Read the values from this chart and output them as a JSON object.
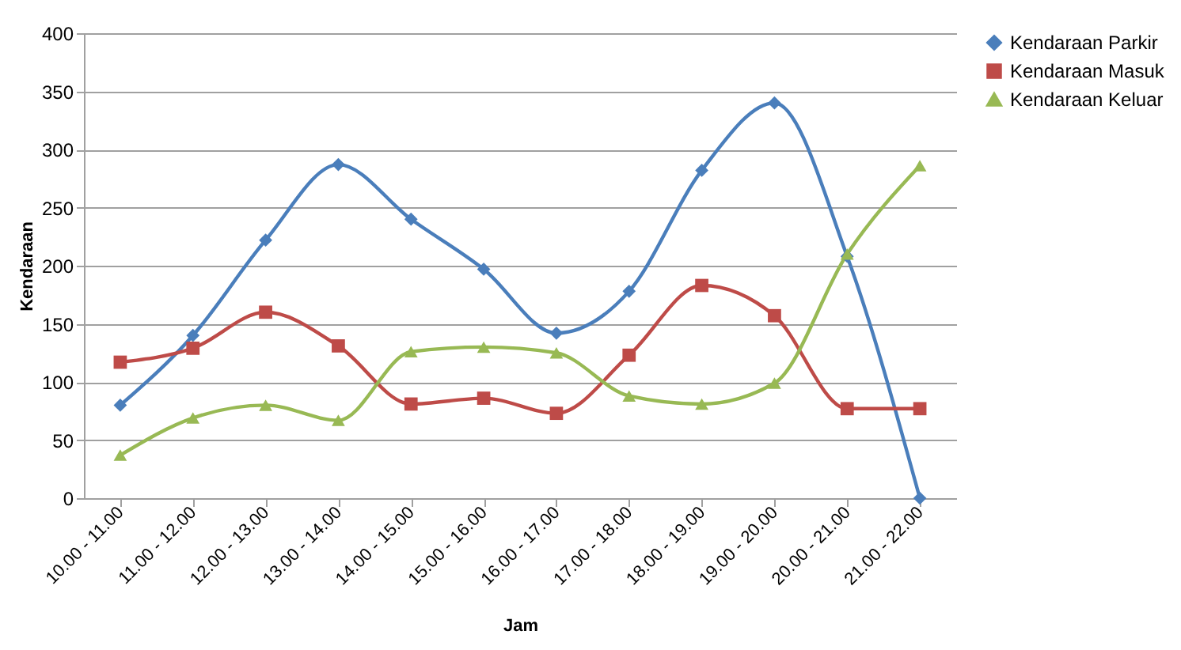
{
  "chart_data": {
    "type": "line",
    "xlabel": "Jam",
    "ylabel": "Kendaraan",
    "categories": [
      "10.00 - 11.00",
      "11.00 - 12.00",
      "12.00 - 13.00",
      "13.00 - 14.00",
      "14.00 - 15.00",
      "15.00 - 16.00",
      "16.00 - 17.00",
      "17.00 - 18.00",
      "18.00 - 19.00",
      "19.00 - 20.00",
      "20.00 - 21.00",
      "21.00 - 22.00"
    ],
    "series": [
      {
        "name": "Kendaraan Parkir",
        "color": "#4a7ebb",
        "marker": "diamond",
        "values": [
          80,
          140,
          222,
          287,
          240,
          197,
          142,
          178,
          282,
          340,
          208,
          0
        ]
      },
      {
        "name": "Kendaraan Masuk",
        "color": "#be4b48",
        "marker": "square",
        "values": [
          117,
          129,
          160,
          131,
          81,
          86,
          73,
          123,
          183,
          157,
          77,
          77
        ]
      },
      {
        "name": "Kendaraan Keluar",
        "color": "#98b954",
        "marker": "triangle",
        "values": [
          37,
          69,
          80,
          67,
          126,
          130,
          125,
          88,
          81,
          99,
          210,
          286
        ]
      }
    ],
    "ylim": [
      0,
      400
    ],
    "yticks": [
      0,
      50,
      100,
      150,
      200,
      250,
      300,
      350,
      400
    ],
    "grid": "y",
    "legend": "right",
    "line_style": "solid"
  }
}
